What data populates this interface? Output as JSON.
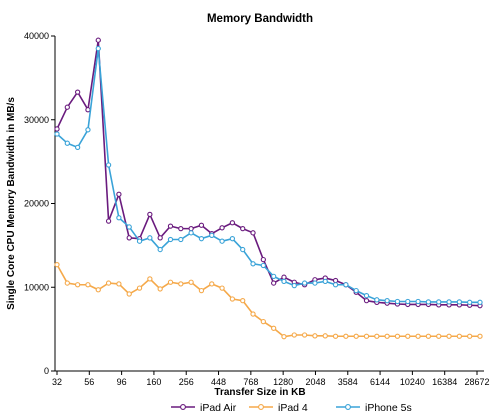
{
  "chart_data": {
    "type": "line",
    "title": "Memory Bandwidth",
    "xlabel": "Transfer Size in KB",
    "ylabel": "Single Core CPU Memory Bandwidth in MB/s",
    "ylim": [
      0,
      40000
    ],
    "yticks": [
      "0",
      "10000",
      "20000",
      "30000",
      "40000"
    ],
    "xticks": [
      "32",
      "56",
      "96",
      "160",
      "256",
      "448",
      "768",
      "1280",
      "2048",
      "3584",
      "6144",
      "10240",
      "16384",
      "28672"
    ],
    "grid": false,
    "legend": "bottom",
    "series": [
      {
        "name": "iPad Air",
        "color": "#6a1b7e",
        "values": [
          28900,
          31500,
          33300,
          31200,
          39500,
          17900,
          21100,
          15900,
          15800,
          18700,
          15900,
          17300,
          17000,
          17000,
          17400,
          16400,
          17100,
          17700,
          17000,
          16500,
          13300,
          10500,
          11200,
          10600,
          10300,
          10900,
          11100,
          10800,
          10300,
          9400,
          8400,
          8200,
          8100,
          8000,
          7950,
          7950,
          7950,
          7900,
          7900,
          7900,
          7850,
          7800
        ]
      },
      {
        "name": "iPad 4",
        "color": "#f5a94a",
        "values": [
          12700,
          10500,
          10300,
          10300,
          9700,
          10500,
          10400,
          9200,
          9900,
          11000,
          9800,
          10600,
          10400,
          10600,
          9600,
          10400,
          9900,
          8600,
          8400,
          6800,
          5900,
          5100,
          4100,
          4300,
          4300,
          4200,
          4200,
          4150,
          4150,
          4150,
          4150,
          4150,
          4150,
          4150,
          4150,
          4150,
          4150,
          4150,
          4150,
          4150,
          4150,
          4150
        ]
      },
      {
        "name": "iPhone 5s",
        "color": "#3aa3d8",
        "values": [
          28300,
          27200,
          26700,
          28800,
          38500,
          24600,
          18300,
          17200,
          15500,
          15900,
          14500,
          15700,
          15700,
          16500,
          15800,
          16200,
          15500,
          15800,
          14500,
          12800,
          12600,
          11300,
          10700,
          10200,
          10500,
          10500,
          10700,
          10300,
          10300,
          9600,
          9000,
          8500,
          8400,
          8300,
          8300,
          8300,
          8250,
          8250,
          8250,
          8250,
          8200,
          8200
        ]
      }
    ]
  }
}
